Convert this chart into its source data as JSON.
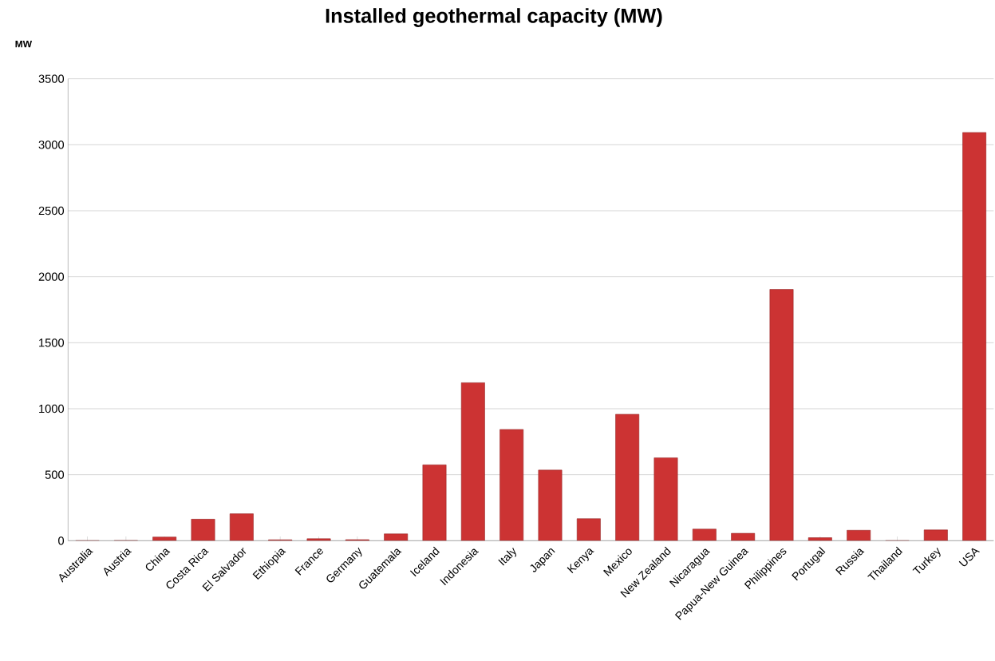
{
  "chart_data": {
    "type": "bar",
    "title": "Installed geothermal capacity (MW)",
    "ylabel": "MW",
    "categories": [
      "Australia",
      "Austria",
      "China",
      "Costa Rica",
      "El Salvador",
      "Ethiopia",
      "France",
      "Germany",
      "Guatemala",
      "Iceland",
      "Indonesia",
      "Italy",
      "Japan",
      "Kenya",
      "Mexico",
      "New Zealand",
      "Nicaragua",
      "Papua-New Guinea",
      "Philippines",
      "Portugal",
      "Russia",
      "Thailand",
      "Turkey",
      "USA"
    ],
    "values": [
      0,
      1,
      28,
      163,
      204,
      7,
      15,
      8,
      52,
      575,
      1197,
      843,
      535,
      167,
      958,
      628,
      88,
      56,
      1904,
      23,
      79,
      0,
      82,
      3093
    ],
    "color": "#cc3333",
    "ylim": [
      0,
      3500
    ],
    "yticks": [
      0,
      500,
      1000,
      1500,
      2000,
      2500,
      3000,
      3500
    ],
    "grid": "y"
  }
}
